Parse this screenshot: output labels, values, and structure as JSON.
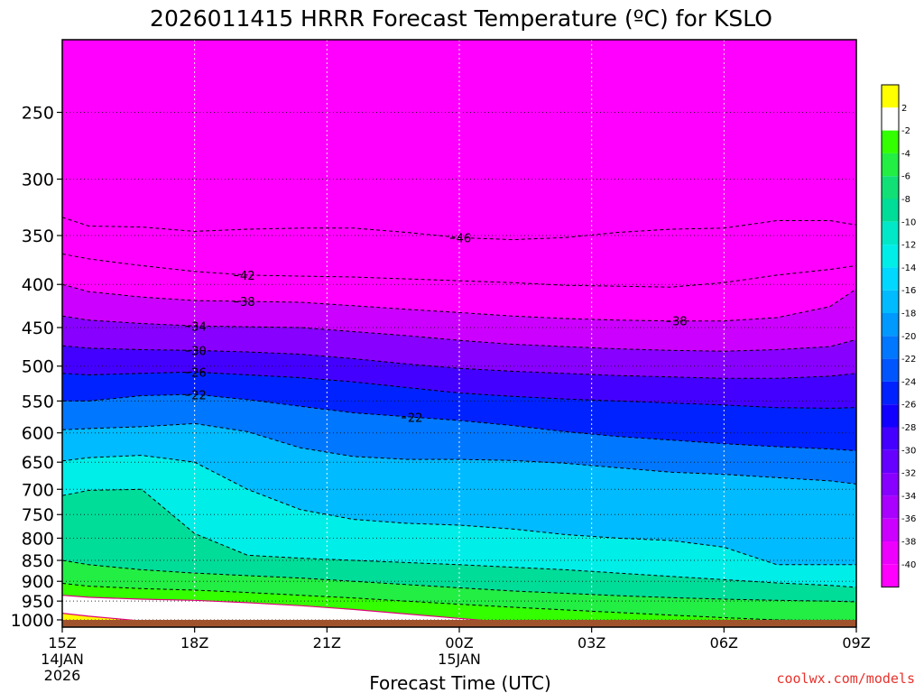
{
  "chart_data": {
    "type": "heatmap",
    "title": "2026011415 HRRR Forecast Temperature (ºC) for KSLO",
    "xlabel": "Forecast Time (UTC)",
    "ylabel": "",
    "credit": "coolwx.com/models",
    "x_ticks": [
      {
        "label": "15Z",
        "sub": [
          "14JAN",
          "2026"
        ],
        "hours": 0
      },
      {
        "label": "18Z",
        "sub": [],
        "hours": 3
      },
      {
        "label": "21Z",
        "sub": [],
        "hours": 6
      },
      {
        "label": "00Z",
        "sub": [
          "15JAN"
        ],
        "hours": 9
      },
      {
        "label": "03Z",
        "sub": [],
        "hours": 12
      },
      {
        "label": "06Z",
        "sub": [],
        "hours": 15
      },
      {
        "label": "09Z",
        "sub": [],
        "hours": 18
      }
    ],
    "xlim_hours": [
      0,
      18
    ],
    "y_axis": {
      "units": "hPa",
      "scale": "log",
      "inverted": true,
      "range": [
        1020,
        205
      ]
    },
    "y_ticks": [
      250,
      300,
      350,
      400,
      450,
      500,
      550,
      600,
      650,
      700,
      750,
      800,
      850,
      900,
      950,
      1000
    ],
    "surface_pressure_hpa": 1000,
    "grid": true,
    "colorbar": {
      "placement": "right",
      "labels": [
        "2",
        "-2",
        "-4",
        "-6",
        "-8",
        "-10",
        "-12",
        "-14",
        "-16",
        "-18",
        "-20",
        "-22",
        "-24",
        "-26",
        "-28",
        "-30",
        "-32",
        "-34",
        "-36",
        "-38",
        "-40"
      ],
      "colors": [
        "#ffff00",
        "#ffffff",
        "#33ff00",
        "#22ee44",
        "#11e077",
        "#00dd99",
        "#00e8c8",
        "#00eee8",
        "#00d8ff",
        "#00bbff",
        "#0099ff",
        "#0077ff",
        "#0055ff",
        "#0022ff",
        "#1100ff",
        "#4400ff",
        "#6600ff",
        "#8800ff",
        "#aa00ff",
        "#cc00ff",
        "#ee00ff",
        "#ff00ff"
      ]
    },
    "ground_color": "#a0522d",
    "contours": [
      {
        "temp": -46,
        "hours": [
          0,
          0.6,
          1.8,
          3,
          4.2,
          5.4,
          6.6,
          7.8,
          9,
          10.2,
          11.4,
          12.6,
          13.8,
          15,
          16.2,
          17.4,
          18
        ],
        "pressure": [
          333,
          341,
          342,
          346,
          344,
          343,
          343,
          347,
          352,
          354,
          352,
          347,
          344,
          343,
          336,
          336,
          340
        ],
        "labels": [
          {
            "hours": 9.1,
            "text": "46"
          }
        ]
      },
      {
        "temp": -42,
        "hours": [
          0,
          0.6,
          1.8,
          3,
          4.2,
          5.4,
          6.6,
          7.8,
          9,
          10.2,
          11.4,
          12.6,
          13.8,
          15,
          16.2,
          17.4,
          18
        ],
        "pressure": [
          368,
          373,
          380,
          386,
          390,
          391,
          392,
          394,
          396,
          398,
          401,
          402,
          403,
          398,
          390,
          384,
          380
        ],
        "labels": [
          {
            "hours": 4.2,
            "text": "42"
          }
        ]
      },
      {
        "temp": -38,
        "hours": [
          0,
          0.6,
          1.8,
          3,
          4.2,
          5.4,
          6.6,
          7.8,
          9,
          10.2,
          11.4,
          12.6,
          13.8,
          15,
          16.2,
          17.4,
          18
        ],
        "pressure": [
          400,
          408,
          414,
          418,
          419,
          420,
          424,
          428,
          432,
          436,
          439,
          441,
          442,
          442,
          438,
          425,
          405
        ],
        "labels": [
          {
            "hours": 4.2,
            "text": "38"
          },
          {
            "hours": 14.0,
            "text": "38"
          }
        ]
      },
      {
        "temp": -34,
        "hours": [
          0,
          0.6,
          1.8,
          3,
          4.2,
          5.4,
          6.6,
          7.8,
          9,
          10.2,
          11.4,
          12.6,
          13.8,
          15,
          16.2,
          17.4,
          18
        ],
        "pressure": [
          436,
          441,
          445,
          448,
          449,
          450,
          455,
          460,
          466,
          471,
          474,
          477,
          479,
          480,
          478,
          474,
          465
        ],
        "labels": [
          {
            "hours": 3.1,
            "text": "34"
          }
        ]
      },
      {
        "temp": -30,
        "hours": [
          0,
          0.6,
          1.8,
          3,
          4.2,
          5.4,
          6.6,
          7.8,
          9,
          10.2,
          11.4,
          12.6,
          13.8,
          15,
          16.2,
          17.4,
          18
        ],
        "pressure": [
          473,
          476,
          478,
          479,
          481,
          484,
          490,
          497,
          503,
          507,
          510,
          513,
          515,
          517,
          517,
          514,
          510
        ],
        "labels": [
          {
            "hours": 3.1,
            "text": "30"
          }
        ]
      },
      {
        "temp": -26,
        "hours": [
          0,
          0.6,
          1.8,
          3,
          4.2,
          5.4,
          6.6,
          7.8,
          9,
          10.2,
          11.4,
          12.6,
          13.8,
          15,
          16.2,
          17.4,
          18
        ],
        "pressure": [
          510,
          512,
          510,
          508,
          512,
          516,
          522,
          530,
          538,
          543,
          547,
          550,
          553,
          556,
          560,
          561,
          560
        ],
        "labels": [
          {
            "hours": 3.1,
            "text": "26"
          }
        ]
      },
      {
        "temp": -22,
        "hours": [
          0,
          0.6,
          1.8,
          3,
          4.2,
          5.4,
          6.6,
          7.8,
          9,
          10.2,
          11.4,
          12.6,
          13.8,
          15,
          16.2,
          17.4,
          18
        ],
        "pressure": [
          550,
          550,
          542,
          540,
          548,
          558,
          568,
          574,
          580,
          588,
          598,
          606,
          612,
          618,
          623,
          627,
          630
        ],
        "labels": [
          {
            "hours": 3.1,
            "text": "22"
          },
          {
            "hours": 8.0,
            "text": "22"
          }
        ]
      },
      {
        "temp": -18,
        "hours": [
          0,
          0.6,
          1.8,
          3,
          4.2,
          5.4,
          6.6,
          7.8,
          9,
          10.2,
          11.4,
          12.6,
          13.8,
          15,
          16.2,
          17.4,
          18
        ],
        "pressure": [
          595,
          593,
          590,
          585,
          598,
          625,
          640,
          645,
          645,
          647,
          652,
          660,
          668,
          672,
          678,
          684,
          690
        ],
        "labels": []
      },
      {
        "temp": -14,
        "hours": [
          0,
          0.6,
          1.8,
          3,
          4.2,
          5.4,
          6.6,
          7.8,
          9,
          10.2,
          11.4,
          12.6,
          13.8,
          15,
          16.2,
          17.4,
          18
        ],
        "pressure": [
          648,
          642,
          638,
          650,
          700,
          740,
          760,
          768,
          772,
          780,
          792,
          800,
          805,
          820,
          860,
          860,
          860
        ],
        "labels": []
      },
      {
        "temp": -10,
        "hours": [
          0,
          0.6,
          1.8,
          3,
          4.2,
          5.4,
          6.6,
          7.8,
          9,
          10.2,
          11.4,
          12.6,
          13.8,
          15,
          16.2,
          17.4,
          18
        ],
        "pressure": [
          712,
          702,
          700,
          790,
          838,
          845,
          850,
          855,
          860,
          866,
          872,
          880,
          888,
          896,
          904,
          910,
          915
        ],
        "labels": []
      },
      {
        "temp": -6,
        "hours": [
          0,
          0.6,
          1.8,
          3,
          4.2,
          5.4,
          6.6,
          7.8,
          9,
          10.2,
          11.4,
          12.6,
          13.8,
          15,
          16.2,
          17.4,
          18
        ],
        "pressure": [
          850,
          860,
          872,
          880,
          886,
          892,
          900,
          908,
          916,
          924,
          930,
          936,
          941,
          945,
          948,
          950,
          952
        ],
        "labels": []
      },
      {
        "temp": -4,
        "hours": [
          0,
          0.6,
          1.8,
          3,
          4.2,
          5.4,
          6.6,
          7.8,
          9,
          10.2,
          11.4,
          12.6,
          13.8,
          15,
          16.2,
          17.4,
          18
        ],
        "pressure": [
          905,
          912,
          918,
          922,
          928,
          935,
          942,
          950,
          958,
          966,
          973,
          980,
          987,
          994,
          1000,
          1003,
          1005
        ],
        "labels": []
      },
      {
        "temp": -2,
        "hours": [
          0,
          0.6,
          1.8,
          3,
          4.2,
          5.4,
          6.6,
          7.8,
          9,
          10.2,
          11.4,
          12.6,
          13.8,
          15,
          16.2,
          17.4,
          18
        ],
        "pressure": [
          935,
          940,
          945,
          948,
          954,
          962,
          972,
          984,
          996,
          1008,
          1012,
          1015,
          1015,
          1015,
          1015,
          1015,
          1015
        ],
        "labels": []
      },
      {
        "temp": 2,
        "hours": [
          0,
          0.6,
          1.8,
          3,
          4.2,
          5.4,
          6.6,
          7.8,
          9,
          10.2,
          11.4,
          12.6,
          13.8,
          15,
          16.2,
          17.4,
          18
        ],
        "pressure": [
          982,
          990,
          1003,
          1012,
          1015,
          1015,
          1015,
          1015,
          1015,
          1015,
          1015,
          1015,
          1015,
          1015,
          1015,
          1015,
          1015
        ],
        "labels": []
      }
    ]
  }
}
